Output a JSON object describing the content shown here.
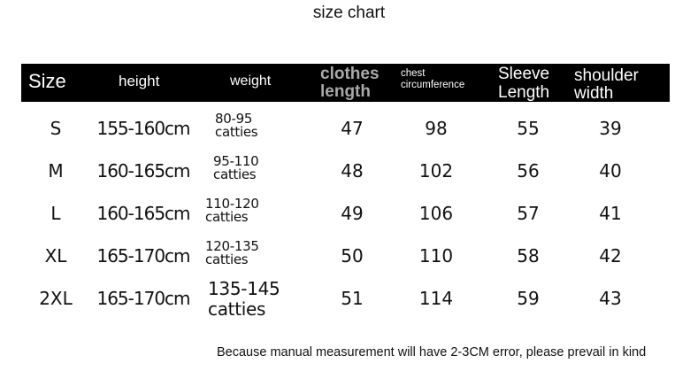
{
  "title": "size chart",
  "headers": {
    "size": "Size",
    "height": "height",
    "weight": "weight",
    "clothes_length": [
      "clothes",
      "length"
    ],
    "chest": [
      "chest",
      "circumference"
    ],
    "sleeve": [
      "Sleeve",
      "Length"
    ],
    "shoulder": [
      "shoulder",
      "width"
    ]
  },
  "rows": [
    {
      "size": "S",
      "height": "155-160cm",
      "weight": [
        "80-95",
        "catties"
      ],
      "clothes_length": "47",
      "chest": "98",
      "sleeve": "55",
      "shoulder": "39"
    },
    {
      "size": "M",
      "height": "160-165cm",
      "weight": [
        "95-110",
        "catties"
      ],
      "clothes_length": "48",
      "chest": "102",
      "sleeve": "56",
      "shoulder": "40"
    },
    {
      "size": "L",
      "height": "160-165cm",
      "weight": [
        "110-120",
        "catties"
      ],
      "clothes_length": "49",
      "chest": "106",
      "sleeve": "57",
      "shoulder": "41"
    },
    {
      "size": "XL",
      "height": "165-170cm",
      "weight": [
        "120-135",
        "catties"
      ],
      "clothes_length": "50",
      "chest": "110",
      "sleeve": "58",
      "shoulder": "42"
    },
    {
      "size": "2XL",
      "height": "165-170cm",
      "weight": [
        "135-145",
        "catties"
      ],
      "clothes_length": "51",
      "chest": "114",
      "sleeve": "59",
      "shoulder": "43"
    }
  ],
  "note": "Because manual measurement will have 2-3CM error, please prevail in kind",
  "colors": {
    "header_bg": "#000000",
    "header_text": "#ffffff",
    "clothes_length_header": "#a9a9a9"
  }
}
